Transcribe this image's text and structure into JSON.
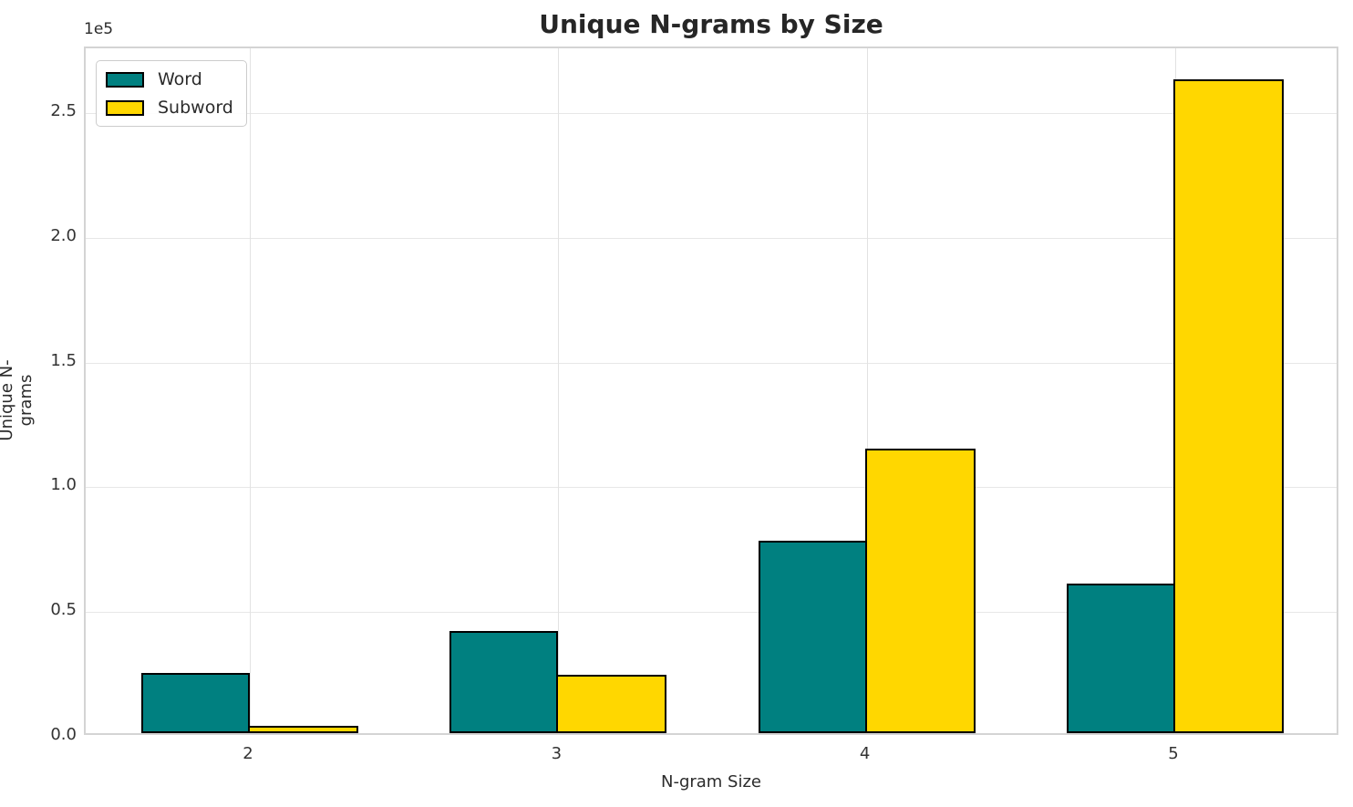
{
  "chart_data": {
    "type": "bar",
    "title": "Unique N-grams by Size",
    "xlabel": "N-gram Size",
    "ylabel": "Unique N-grams",
    "y_offset_text": "1e5",
    "categories": [
      "2",
      "3",
      "4",
      "5"
    ],
    "series": [
      {
        "name": "Word",
        "color": "#008080",
        "values": [
          24000,
          41000,
          77000,
          60000
        ]
      },
      {
        "name": "Subword",
        "color": "#FFD700",
        "values": [
          3000,
          23500,
          114000,
          262000
        ]
      }
    ],
    "ylim": [
      0,
      276000
    ],
    "yticks": {
      "values": [
        0,
        50000,
        100000,
        150000,
        200000,
        250000
      ],
      "labels": [
        "0.0",
        "0.5",
        "1.0",
        "1.5",
        "2.0",
        "2.5"
      ]
    },
    "grid": true,
    "legend_position": "upper left",
    "bar_edge_color": "#000000",
    "colors": {
      "word_bar": "#008080",
      "subword_bar": "#FFD700",
      "grid": "#e7e7e7",
      "spine": "#d4d4d4",
      "text": "#2b2b2b"
    }
  }
}
